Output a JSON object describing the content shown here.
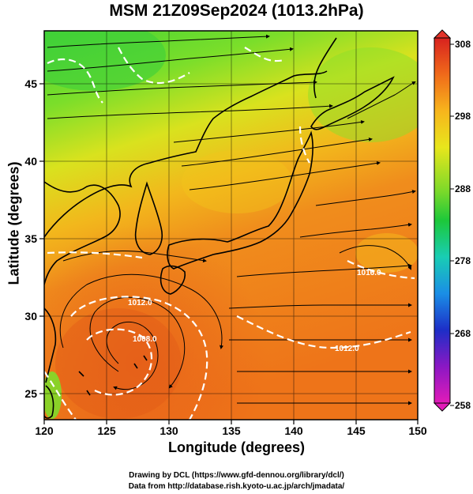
{
  "title": "MSM 21Z09Sep2024 (1013.2hPa)",
  "xaxis": {
    "label": "Longitude (degrees)",
    "ticks": [
      "120",
      "125",
      "130",
      "135",
      "140",
      "145",
      "150"
    ],
    "range": [
      120,
      150
    ]
  },
  "yaxis": {
    "label": "Latitude  (degrees)",
    "ticks": [
      "25",
      "30",
      "35",
      "40",
      "45"
    ],
    "range": [
      22.4,
      47.6
    ]
  },
  "colorbar": {
    "ticks": [
      "308",
      "298",
      "288",
      "278",
      "268",
      "258"
    ],
    "range": [
      258,
      308
    ]
  },
  "credits": {
    "line1": "Drawing by DCL (https://www.gfd-dennou.org/library/dcl/)",
    "line2": "Data from http://database.rish.kyoto-u.ac.jp/arch/jmadata/"
  },
  "colors": {
    "land_outline": "#000000",
    "streamline": "#000000",
    "isobar": "#ffffff",
    "frame": "#000000"
  },
  "contour_labels": [
    "1012.0",
    "1008.0",
    "1012.0",
    "1016.0"
  ]
}
